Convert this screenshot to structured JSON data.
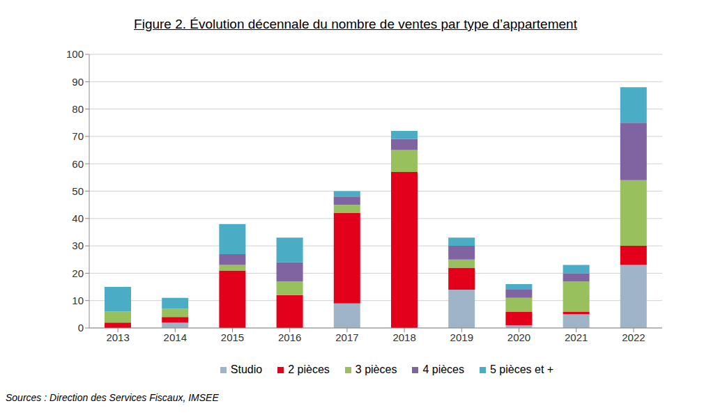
{
  "chart_data": {
    "type": "bar",
    "title": "Figure 2. Évolution décennale du nombre de ventes par type d’appartement",
    "source": "Sources : Direction des Services Fiscaux, IMSEE",
    "categories": [
      "2013",
      "2014",
      "2015",
      "2016",
      "2017",
      "2018",
      "2019",
      "2020",
      "2021",
      "2022"
    ],
    "series": [
      {
        "name": "Studio",
        "color": "#9fb4c7",
        "values": [
          0,
          2,
          0,
          0,
          9,
          0,
          14,
          1,
          5,
          23
        ]
      },
      {
        "name": "2 pièces",
        "color": "#e3001b",
        "values": [
          2,
          2,
          21,
          12,
          33,
          57,
          8,
          5,
          1,
          7
        ]
      },
      {
        "name": "3 pièces",
        "color": "#98c05c",
        "values": [
          4,
          3,
          2,
          5,
          3,
          8,
          3,
          5,
          11,
          24
        ]
      },
      {
        "name": "4 pièces",
        "color": "#8064a2",
        "values": [
          0,
          0,
          4,
          7,
          3,
          4,
          5,
          3,
          3,
          21
        ]
      },
      {
        "name": "5 pièces et +",
        "color": "#4bacc6",
        "values": [
          9,
          4,
          11,
          9,
          2,
          3,
          3,
          2,
          3,
          13
        ]
      }
    ],
    "stacked": true,
    "grid": true,
    "legend": "bottom",
    "ylim": [
      0,
      100
    ],
    "yticks": [
      0,
      10,
      20,
      30,
      40,
      50,
      60,
      70,
      80,
      90,
      100
    ]
  }
}
